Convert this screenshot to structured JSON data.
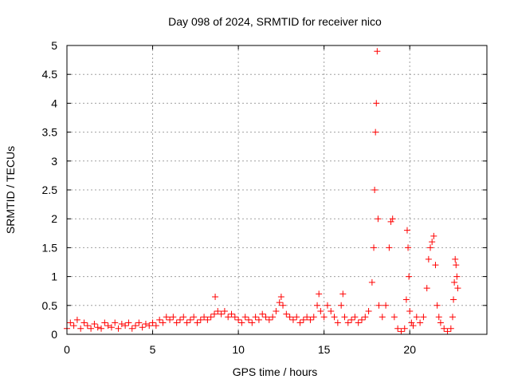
{
  "chart_data": {
    "type": "scatter",
    "title": "Day 098 of 2024, SRMTID for receiver nico",
    "xlabel": "GPS time / hours",
    "ylabel": "SRMTID / TECUs",
    "xlim": [
      0,
      24.5
    ],
    "ylim": [
      0,
      5
    ],
    "x_ticks": [
      0,
      5,
      10,
      15,
      20
    ],
    "x_tick_labels": [
      "0",
      "5",
      "10",
      "15",
      "20"
    ],
    "y_ticks": [
      0,
      0.5,
      1,
      1.5,
      2,
      2.5,
      3,
      3.5,
      4,
      4.5,
      5
    ],
    "y_tick_labels": [
      "0",
      "0.5",
      "1",
      "1.5",
      "2",
      "2.5",
      "3",
      "3.5",
      "4",
      "4.5",
      "5"
    ],
    "grid": true,
    "marker": "+",
    "series": [
      {
        "name": "SRMTID",
        "color": "#ff0000",
        "x": [
          0.0,
          0.2,
          0.4,
          0.6,
          0.8,
          1.0,
          1.2,
          1.4,
          1.6,
          1.8,
          2.0,
          2.2,
          2.4,
          2.6,
          2.8,
          3.0,
          3.2,
          3.4,
          3.6,
          3.8,
          4.0,
          4.2,
          4.4,
          4.6,
          4.8,
          5.0,
          5.2,
          5.4,
          5.6,
          5.8,
          6.0,
          6.2,
          6.4,
          6.6,
          6.8,
          7.0,
          7.2,
          7.4,
          7.6,
          7.8,
          8.0,
          8.2,
          8.4,
          8.6,
          8.65,
          8.8,
          9.0,
          9.2,
          9.4,
          9.6,
          9.8,
          10.0,
          10.2,
          10.4,
          10.6,
          10.8,
          11.0,
          11.2,
          11.4,
          11.6,
          11.8,
          12.0,
          12.2,
          12.4,
          12.5,
          12.6,
          12.8,
          13.0,
          13.2,
          13.4,
          13.6,
          13.8,
          14.0,
          14.2,
          14.4,
          14.6,
          14.7,
          14.8,
          15.0,
          15.2,
          15.4,
          15.6,
          15.8,
          16.0,
          16.1,
          16.2,
          16.4,
          16.6,
          16.8,
          17.0,
          17.2,
          17.4,
          17.6,
          17.8,
          17.9,
          17.95,
          18.0,
          18.05,
          18.1,
          18.15,
          18.2,
          18.4,
          18.6,
          18.8,
          18.9,
          19.0,
          19.1,
          19.3,
          19.5,
          19.7,
          19.8,
          19.85,
          19.9,
          19.95,
          20.0,
          20.1,
          20.2,
          20.4,
          20.6,
          20.8,
          21.0,
          21.1,
          21.2,
          21.3,
          21.4,
          21.5,
          21.6,
          21.7,
          21.8,
          22.0,
          22.2,
          22.4,
          22.5,
          22.55,
          22.6,
          22.65,
          22.7,
          22.75,
          22.8
        ],
        "y": [
          0.1,
          0.2,
          0.15,
          0.25,
          0.1,
          0.2,
          0.15,
          0.1,
          0.18,
          0.12,
          0.1,
          0.2,
          0.15,
          0.12,
          0.2,
          0.1,
          0.18,
          0.15,
          0.2,
          0.1,
          0.15,
          0.2,
          0.12,
          0.18,
          0.15,
          0.2,
          0.15,
          0.25,
          0.2,
          0.3,
          0.25,
          0.3,
          0.2,
          0.25,
          0.3,
          0.2,
          0.25,
          0.3,
          0.2,
          0.25,
          0.3,
          0.25,
          0.3,
          0.35,
          0.65,
          0.4,
          0.35,
          0.4,
          0.3,
          0.35,
          0.3,
          0.25,
          0.2,
          0.3,
          0.25,
          0.2,
          0.3,
          0.25,
          0.35,
          0.3,
          0.25,
          0.3,
          0.4,
          0.55,
          0.65,
          0.5,
          0.35,
          0.3,
          0.25,
          0.3,
          0.2,
          0.25,
          0.3,
          0.25,
          0.3,
          0.5,
          0.7,
          0.4,
          0.3,
          0.5,
          0.4,
          0.3,
          0.2,
          0.5,
          0.7,
          0.3,
          0.2,
          0.25,
          0.3,
          0.2,
          0.25,
          0.3,
          0.4,
          0.9,
          1.5,
          2.5,
          3.5,
          4.0,
          4.9,
          2.0,
          0.5,
          0.3,
          0.5,
          1.5,
          1.95,
          2.0,
          0.3,
          0.1,
          0.05,
          0.1,
          0.6,
          1.8,
          1.5,
          1.0,
          0.4,
          0.2,
          0.15,
          0.3,
          0.2,
          0.3,
          0.8,
          1.3,
          1.5,
          1.6,
          1.7,
          1.2,
          0.5,
          0.3,
          0.2,
          0.1,
          0.05,
          0.1,
          0.3,
          0.6,
          0.9,
          1.3,
          1.2,
          1.0,
          0.8
        ]
      }
    ]
  }
}
